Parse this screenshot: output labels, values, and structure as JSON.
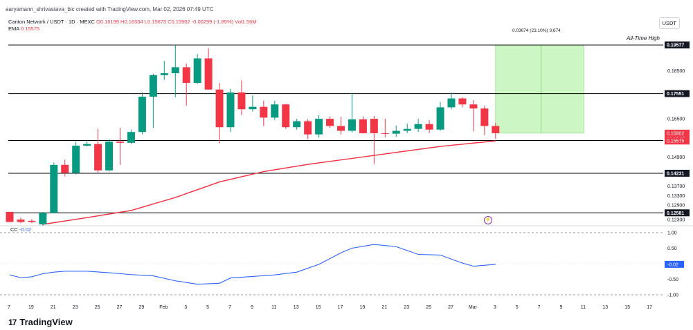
{
  "header": {
    "author_line": "aaryamann_shrivastava_bic created with TradingView.com, Mar 02, 2026 07:49 UTC",
    "symbol": "Canton Network / USDT · 1D · MEXC",
    "o": "O0.16199",
    "h": "H0.16334",
    "l": "L0.15673",
    "c": "C0.15902",
    "change": "-0.00299 (-1.85%)",
    "vol": "Vol1.56M",
    "ema_label": "EMA",
    "ema_value": "0.15575",
    "cc_label": "CC",
    "cc_value": "-0.02",
    "currency": "USDT",
    "measure": "0.03674 (23.10%) 3,674",
    "ath_label": "All-Time High",
    "brand": "TradingView",
    "brand_logo": "17"
  },
  "colors": {
    "up": "#089981",
    "down": "#f23645",
    "ema": "#f23645",
    "cc": "#2962ff",
    "target_box": "#ccf7c4",
    "line": "#000000"
  },
  "chart_data": [
    {
      "type": "candlestick",
      "title": "Canton Network / USDT · 1D · MEXC",
      "x_tick_labels": [
        "7",
        "19",
        "21",
        "23",
        "25",
        "27",
        "29",
        "Feb",
        "3",
        "5",
        "7",
        "9",
        "11",
        "13",
        "15",
        "17",
        "19",
        "21",
        "23",
        "25",
        "27",
        "Mar",
        "3",
        "5",
        "7",
        "9",
        "11",
        "13",
        "15",
        "17"
      ],
      "y_tick_labels": [
        "0.18500",
        "0.16500",
        "0.14900",
        "0.13700",
        "0.13300",
        "0.12900",
        "0.12300"
      ],
      "ylim": [
        0.121,
        0.201
      ],
      "x_range_days": [
        "2026-01-17",
        "2026-03-17"
      ],
      "candles": [
        {
          "date": "2026-01-17",
          "o": 0.1262,
          "h": 0.1262,
          "l": 0.122,
          "c": 0.122
        },
        {
          "date": "2026-01-18",
          "o": 0.123,
          "h": 0.1238,
          "l": 0.1215,
          "c": 0.122
        },
        {
          "date": "2026-01-19",
          "o": 0.1225,
          "h": 0.1232,
          "l": 0.1215,
          "c": 0.122
        },
        {
          "date": "2026-01-20",
          "o": 0.121,
          "h": 0.1262,
          "l": 0.1205,
          "c": 0.1258
        },
        {
          "date": "2026-01-21",
          "o": 0.1258,
          "h": 0.1468,
          "l": 0.1255,
          "c": 0.1458
        },
        {
          "date": "2026-01-22",
          "o": 0.1458,
          "h": 0.148,
          "l": 0.141,
          "c": 0.1425
        },
        {
          "date": "2026-01-23",
          "o": 0.1425,
          "h": 0.1555,
          "l": 0.1418,
          "c": 0.1538
        },
        {
          "date": "2026-01-24",
          "o": 0.1538,
          "h": 0.156,
          "l": 0.1535,
          "c": 0.1545
        },
        {
          "date": "2026-01-25",
          "o": 0.1545,
          "h": 0.1608,
          "l": 0.1425,
          "c": 0.1435
        },
        {
          "date": "2026-01-26",
          "o": 0.1435,
          "h": 0.1565,
          "l": 0.143,
          "c": 0.1555
        },
        {
          "date": "2026-01-27",
          "o": 0.1555,
          "h": 0.1612,
          "l": 0.1458,
          "c": 0.155
        },
        {
          "date": "2026-01-28",
          "o": 0.155,
          "h": 0.1605,
          "l": 0.1545,
          "c": 0.1595
        },
        {
          "date": "2026-01-29",
          "o": 0.1595,
          "h": 0.176,
          "l": 0.1585,
          "c": 0.1742
        },
        {
          "date": "2026-01-30",
          "o": 0.1742,
          "h": 0.1838,
          "l": 0.1612,
          "c": 0.1832
        },
        {
          "date": "2026-01-31",
          "o": 0.1832,
          "h": 0.1892,
          "l": 0.1812,
          "c": 0.184
        },
        {
          "date": "2026-02-01",
          "o": 0.184,
          "h": 0.1958,
          "l": 0.174,
          "c": 0.1865
        },
        {
          "date": "2026-02-02",
          "o": 0.1865,
          "h": 0.188,
          "l": 0.1705,
          "c": 0.18
        },
        {
          "date": "2026-02-03",
          "o": 0.18,
          "h": 0.192,
          "l": 0.1795,
          "c": 0.1902
        },
        {
          "date": "2026-02-04",
          "o": 0.1902,
          "h": 0.1945,
          "l": 0.1772,
          "c": 0.1772
        },
        {
          "date": "2026-02-05",
          "o": 0.1772,
          "h": 0.18,
          "l": 0.1548,
          "c": 0.1615
        },
        {
          "date": "2026-02-06",
          "o": 0.1615,
          "h": 0.1775,
          "l": 0.1595,
          "c": 0.176
        },
        {
          "date": "2026-02-07",
          "o": 0.176,
          "h": 0.181,
          "l": 0.1665,
          "c": 0.169
        },
        {
          "date": "2026-02-08",
          "o": 0.169,
          "h": 0.1748,
          "l": 0.168,
          "c": 0.17
        },
        {
          "date": "2026-02-09",
          "o": 0.17,
          "h": 0.1725,
          "l": 0.162,
          "c": 0.1655
        },
        {
          "date": "2026-02-10",
          "o": 0.1655,
          "h": 0.1725,
          "l": 0.1645,
          "c": 0.171
        },
        {
          "date": "2026-02-11",
          "o": 0.171,
          "h": 0.1712,
          "l": 0.1608,
          "c": 0.1615
        },
        {
          "date": "2026-02-12",
          "o": 0.1615,
          "h": 0.165,
          "l": 0.1605,
          "c": 0.164
        },
        {
          "date": "2026-02-13",
          "o": 0.164,
          "h": 0.1648,
          "l": 0.1565,
          "c": 0.1585
        },
        {
          "date": "2026-02-14",
          "o": 0.1585,
          "h": 0.1665,
          "l": 0.1572,
          "c": 0.165
        },
        {
          "date": "2026-02-15",
          "o": 0.165,
          "h": 0.166,
          "l": 0.1612,
          "c": 0.162
        },
        {
          "date": "2026-02-16",
          "o": 0.162,
          "h": 0.1658,
          "l": 0.1585,
          "c": 0.16
        },
        {
          "date": "2026-02-17",
          "o": 0.16,
          "h": 0.1758,
          "l": 0.1592,
          "c": 0.1648
        },
        {
          "date": "2026-02-18",
          "o": 0.1648,
          "h": 0.166,
          "l": 0.1588,
          "c": 0.159
        },
        {
          "date": "2026-02-19",
          "o": 0.165,
          "h": 0.1662,
          "l": 0.1462,
          "c": 0.159
        },
        {
          "date": "2026-02-20",
          "o": 0.159,
          "h": 0.165,
          "l": 0.1572,
          "c": 0.1588
        },
        {
          "date": "2026-02-21",
          "o": 0.1588,
          "h": 0.1622,
          "l": 0.1575,
          "c": 0.16
        },
        {
          "date": "2026-02-22",
          "o": 0.16,
          "h": 0.163,
          "l": 0.159,
          "c": 0.1608
        },
        {
          "date": "2026-02-23",
          "o": 0.1608,
          "h": 0.165,
          "l": 0.1595,
          "c": 0.1628
        },
        {
          "date": "2026-02-24",
          "o": 0.1628,
          "h": 0.1645,
          "l": 0.159,
          "c": 0.1605
        },
        {
          "date": "2026-02-25",
          "o": 0.1605,
          "h": 0.172,
          "l": 0.16,
          "c": 0.1698
        },
        {
          "date": "2026-02-26",
          "o": 0.1698,
          "h": 0.176,
          "l": 0.169,
          "c": 0.1735
        },
        {
          "date": "2026-02-27",
          "o": 0.1735,
          "h": 0.174,
          "l": 0.1698,
          "c": 0.171
        },
        {
          "date": "2026-02-28",
          "o": 0.171,
          "h": 0.1728,
          "l": 0.1598,
          "c": 0.1693
        },
        {
          "date": "2026-03-01",
          "o": 0.1693,
          "h": 0.1705,
          "l": 0.1582,
          "c": 0.162
        },
        {
          "date": "2026-03-02",
          "o": 0.162,
          "h": 0.1633,
          "l": 0.1567,
          "c": 0.159
        }
      ],
      "ema": [
        {
          "date": "2026-01-20",
          "v": 0.121
        },
        {
          "date": "2026-01-24",
          "v": 0.1238
        },
        {
          "date": "2026-01-28",
          "v": 0.1268
        },
        {
          "date": "2026-02-01",
          "v": 0.1322
        },
        {
          "date": "2026-02-05",
          "v": 0.1387
        },
        {
          "date": "2026-02-09",
          "v": 0.143
        },
        {
          "date": "2026-02-13",
          "v": 0.146
        },
        {
          "date": "2026-02-17",
          "v": 0.1485
        },
        {
          "date": "2026-02-21",
          "v": 0.151
        },
        {
          "date": "2026-02-25",
          "v": 0.1535
        },
        {
          "date": "2026-02-28",
          "v": 0.1549
        },
        {
          "date": "2026-03-02",
          "v": 0.1558
        }
      ],
      "horizontal_lines": [
        {
          "value": 0.19577,
          "label": "0.19577"
        },
        {
          "value": 0.17551,
          "label": "0.17551"
        },
        {
          "value": 0.15596,
          "label": "0.15596"
        },
        {
          "value": 0.14231,
          "label": "0.14231"
        },
        {
          "value": 0.12581,
          "label": "0.12581"
        }
      ],
      "price_labels": [
        {
          "value": 0.15902,
          "label": "0.15902",
          "sub": "16:10:05"
        },
        {
          "value": 0.15575,
          "label": "0.15575"
        }
      ],
      "target_box": {
        "from": "2026-03-02",
        "to": "2026-03-10",
        "low": 0.15902,
        "high": 0.19577
      }
    },
    {
      "type": "line",
      "name": "CC",
      "ylim": [
        -1.0,
        1.0
      ],
      "y_tick_labels": [
        "1.00",
        "0.50",
        "-0.50",
        "-1.00"
      ],
      "current": "-0.02",
      "points": [
        {
          "date": "2026-01-17",
          "v": -0.36
        },
        {
          "date": "2026-01-18",
          "v": -0.45
        },
        {
          "date": "2026-01-19",
          "v": -0.42
        },
        {
          "date": "2026-01-20",
          "v": -0.32
        },
        {
          "date": "2026-01-21",
          "v": -0.27
        },
        {
          "date": "2026-01-22",
          "v": -0.24
        },
        {
          "date": "2026-01-24",
          "v": -0.24
        },
        {
          "date": "2026-01-26",
          "v": -0.29
        },
        {
          "date": "2026-01-28",
          "v": -0.35
        },
        {
          "date": "2026-01-30",
          "v": -0.39
        },
        {
          "date": "2026-02-01",
          "v": -0.55
        },
        {
          "date": "2026-02-03",
          "v": -0.66
        },
        {
          "date": "2026-02-05",
          "v": -0.63
        },
        {
          "date": "2026-02-06",
          "v": -0.46
        },
        {
          "date": "2026-02-08",
          "v": -0.41
        },
        {
          "date": "2026-02-10",
          "v": -0.36
        },
        {
          "date": "2026-02-12",
          "v": -0.27
        },
        {
          "date": "2026-02-14",
          "v": -0.02
        },
        {
          "date": "2026-02-16",
          "v": 0.35
        },
        {
          "date": "2026-02-17",
          "v": 0.5
        },
        {
          "date": "2026-02-19",
          "v": 0.62
        },
        {
          "date": "2026-02-21",
          "v": 0.55
        },
        {
          "date": "2026-02-23",
          "v": 0.3
        },
        {
          "date": "2026-02-25",
          "v": 0.28
        },
        {
          "date": "2026-02-27",
          "v": 0.02
        },
        {
          "date": "2026-02-28",
          "v": -0.08
        },
        {
          "date": "2026-03-02",
          "v": -0.02
        }
      ]
    }
  ]
}
